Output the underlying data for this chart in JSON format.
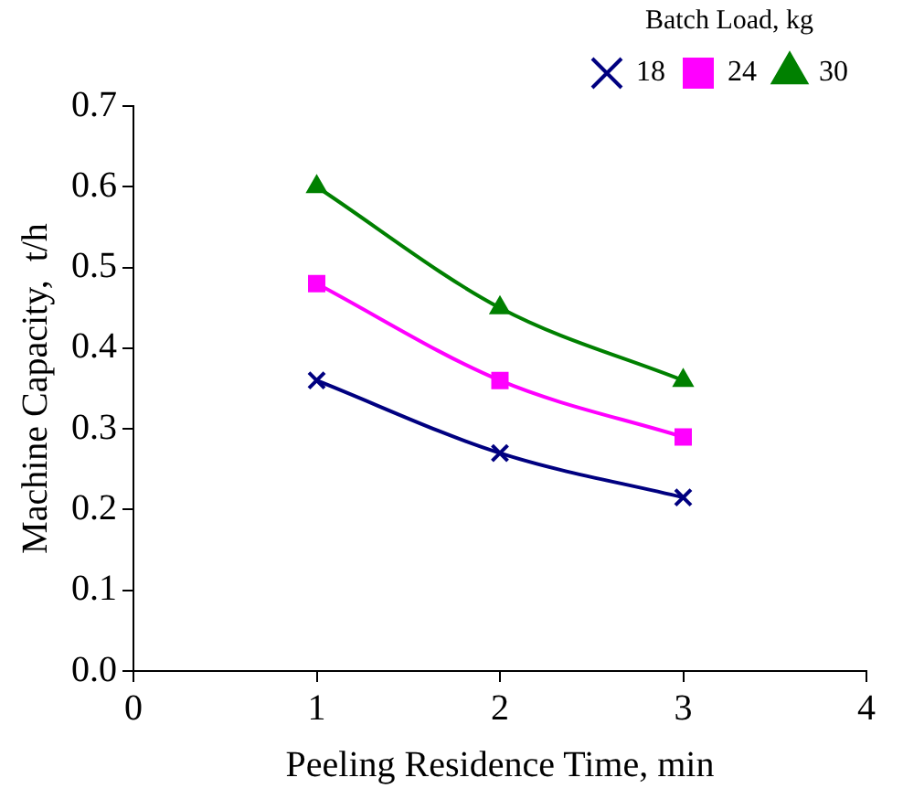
{
  "chart_data": {
    "type": "line",
    "xlabel": "Peeling Residence Time, min",
    "ylabel": "Machine Capacity,  t/h",
    "legend_title": "Batch Load, kg",
    "legend": "top right",
    "grid": false,
    "x": [
      1,
      2,
      3
    ],
    "xlim": [
      0,
      4
    ],
    "xticks": [
      0,
      1,
      2,
      3,
      4
    ],
    "ylim": [
      0,
      0.7
    ],
    "yticks": [
      {
        "value": 0,
        "label": "0.0"
      },
      0.1,
      0.2,
      0.3,
      0.4,
      0.5,
      0.6,
      0.7
    ],
    "series": [
      {
        "name": "18",
        "color": "#000080",
        "marker": "cross",
        "values": [
          0.36,
          0.27,
          0.215
        ]
      },
      {
        "name": "24",
        "color": "#ff00ff",
        "marker": "square",
        "values": [
          0.48,
          0.36,
          0.29
        ]
      },
      {
        "name": "30",
        "color": "#008000",
        "marker": "triangle",
        "values": [
          0.6,
          0.45,
          0.36
        ]
      }
    ]
  }
}
